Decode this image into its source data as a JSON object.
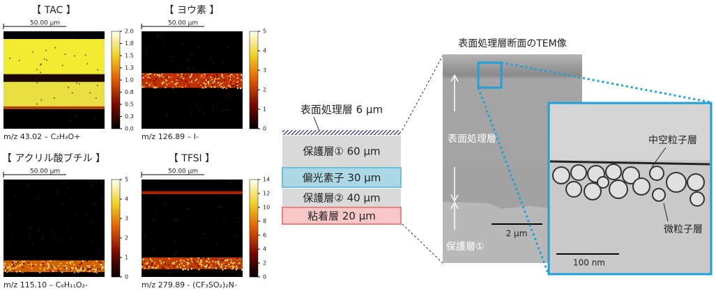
{
  "panels": [
    {
      "title": "【 TAC 】",
      "scale": "50.00 µm",
      "colorbar_ticks": [
        "2.0",
        "1.8",
        "1.5",
        "1.3",
        "1.0",
        "0.8",
        "0.5",
        "0.3",
        "0.0"
      ],
      "caption": "m/z 43.02 – C₂H₃O+"
    },
    {
      "title": "【 ヨウ素 】",
      "scale": "50.00 µm",
      "colorbar_ticks": [
        "5",
        "4",
        "3",
        "2",
        "1",
        "0"
      ],
      "caption": "m/z 126.89 – I-"
    },
    {
      "title": "【 アクリル酸ブチル 】",
      "scale": "50.00 µm",
      "colorbar_ticks": [
        "5",
        "4",
        "3",
        "2",
        "1",
        "0"
      ],
      "caption": "m/z 115.10 – C₆H₁₁O₂-"
    },
    {
      "title": "【 TFSI 】",
      "scale": "50.00 µm",
      "colorbar_ticks": [
        "14",
        "12",
        "10",
        "8",
        "6",
        "4",
        "2",
        "0"
      ],
      "caption": "m/z 279.89 - (CF₃SO₂)₂N-"
    }
  ],
  "layers": {
    "surface": "表面処理層  6 µm",
    "items": [
      "保護層①  60 µm",
      "偏光素子  30 µm",
      "保護層②  40 µm",
      "粘着層  20 µm"
    ]
  },
  "tem": {
    "title": "表面処理層断面のTEM像",
    "surface_label": "表面処理層",
    "protect_label": "保護層①",
    "scale": "2 µm",
    "hollow": "中空粒子層",
    "fine": "微粒子層",
    "inset_scale": "100 nm"
  }
}
